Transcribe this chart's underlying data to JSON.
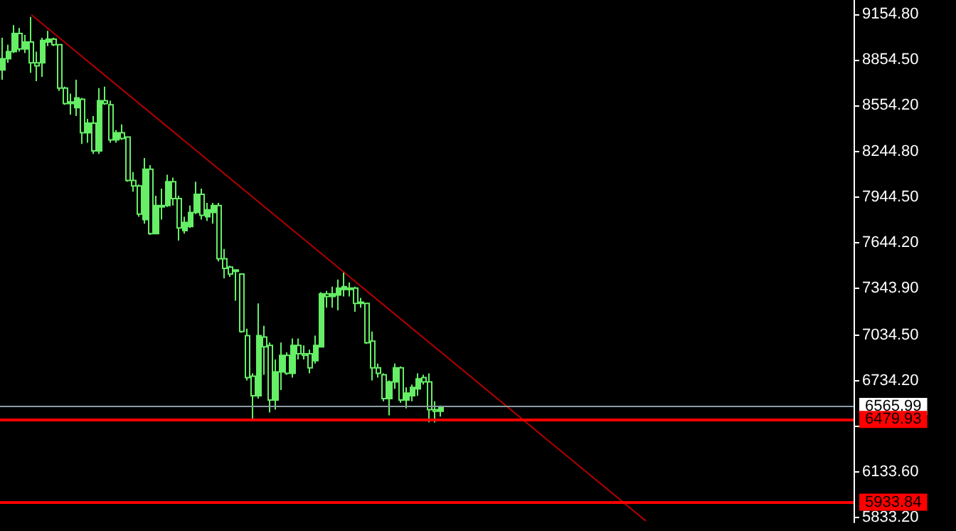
{
  "chart_data": {
    "type": "candlestick",
    "categories": [
      null,
      null,
      null,
      null,
      null,
      null,
      null,
      null,
      null,
      null,
      null,
      null,
      null,
      null,
      null,
      null,
      null,
      null,
      null,
      null,
      null,
      null,
      null,
      null,
      null,
      null,
      null,
      null,
      null,
      null,
      null,
      null,
      null,
      null,
      null,
      null,
      null,
      null,
      null,
      null,
      null,
      null,
      null,
      null,
      null,
      null,
      null,
      null,
      null,
      null,
      null,
      null,
      null,
      null,
      null,
      null,
      null,
      null,
      null,
      null,
      null,
      null,
      null,
      null,
      null,
      null,
      null,
      null,
      null,
      null,
      null,
      null,
      null,
      null,
      null,
      null,
      null,
      null,
      null,
      null,
      null,
      null,
      null,
      null,
      null,
      null,
      null,
      null,
      null,
      null,
      null,
      null,
      null,
      null,
      null,
      null,
      null,
      null,
      null,
      null,
      null,
      null,
      null,
      null,
      null,
      null,
      null,
      null,
      null,
      null,
      null,
      null,
      null,
      null,
      null,
      null,
      null,
      null,
      null,
      null,
      null,
      null,
      null,
      null,
      null,
      null,
      null,
      null,
      null,
      null,
      null,
      null,
      null,
      null,
      null,
      null,
      null,
      null,
      null,
      null,
      null,
      null,
      null,
      null,
      null,
      null,
      null,
      null,
      null,
      null
    ],
    "series": [
      {
        "color": "#66ee66",
        "ohlc": [
          [
            8786,
            8998,
            8721,
            8860
          ],
          [
            8860,
            8952,
            8832,
            8906
          ],
          [
            8906,
            9081,
            8897,
            9026
          ],
          [
            9026,
            9063,
            8906,
            8924
          ],
          [
            8924,
            9017,
            8897,
            8970
          ],
          [
            8970,
            9136,
            8767,
            8832
          ],
          [
            8832,
            8906,
            8712,
            8813
          ],
          [
            8832,
            8998,
            8740,
            8980
          ],
          [
            8970,
            9044,
            8943,
            8989
          ],
          [
            8989,
            8998,
            8943,
            8952
          ],
          [
            8952,
            8952,
            8647,
            8666
          ],
          [
            8666,
            8675,
            8555,
            8564
          ],
          [
            8564,
            8629,
            8491,
            8574
          ],
          [
            8537,
            8721,
            8481,
            8601
          ],
          [
            8592,
            8601,
            8297,
            8371
          ],
          [
            8371,
            8463,
            8306,
            8435
          ],
          [
            8435,
            8481,
            8232,
            8251
          ],
          [
            8251,
            8666,
            8232,
            8583
          ],
          [
            8583,
            8675,
            8555,
            8564
          ],
          [
            8555,
            8583,
            8306,
            8324
          ],
          [
            8324,
            8389,
            8306,
            8371
          ],
          [
            8371,
            8426,
            8324,
            8334
          ],
          [
            8343,
            8343,
            8048,
            8057
          ],
          [
            8057,
            8112,
            7983,
            8020
          ],
          [
            8020,
            8029,
            7817,
            7835
          ],
          [
            7798,
            8204,
            7771,
            8131
          ],
          [
            8131,
            8158,
            7697,
            7706
          ],
          [
            7706,
            7955,
            7706,
            7891
          ],
          [
            7891,
            8002,
            7798,
            7882
          ],
          [
            7891,
            8094,
            7882,
            8048
          ],
          [
            8048,
            8075,
            7891,
            7937
          ],
          [
            7937,
            7955,
            7660,
            7743
          ],
          [
            7725,
            7817,
            7706,
            7780
          ],
          [
            7752,
            7891,
            7743,
            7845
          ],
          [
            7845,
            8048,
            7835,
            7965
          ],
          [
            7965,
            8002,
            7798,
            7826
          ],
          [
            7817,
            7909,
            7789,
            7863
          ],
          [
            7845,
            7909,
            7771,
            7891
          ],
          [
            7891,
            7909,
            7522,
            7540
          ],
          [
            7540,
            7605,
            7411,
            7476
          ],
          [
            7485,
            7494,
            7420,
            7439
          ],
          [
            7466,
            7466,
            7263,
            7457
          ],
          [
            7439,
            7439,
            7051,
            7060
          ],
          [
            7033,
            7079,
            6737,
            6756
          ],
          [
            6765,
            6784,
            6479,
            6636
          ],
          [
            6636,
            7245,
            6617,
            7033
          ],
          [
            7023,
            7097,
            6774,
            6959
          ],
          [
            6968,
            6987,
            6525,
            6608
          ],
          [
            6608,
            6876,
            6544,
            6793
          ],
          [
            6793,
            6987,
            6673,
            6903
          ],
          [
            6903,
            6922,
            6774,
            6784
          ],
          [
            6784,
            7014,
            6756,
            6968
          ],
          [
            6968,
            7014,
            6876,
            6913
          ],
          [
            6913,
            6968,
            6876,
            6903
          ],
          [
            6913,
            6940,
            6784,
            6820
          ],
          [
            6867,
            7033,
            6848,
            6968
          ],
          [
            6959,
            7319,
            6959,
            7309
          ],
          [
            7309,
            7328,
            7217,
            7291
          ],
          [
            7291,
            7356,
            7217,
            7309
          ],
          [
            7300,
            7402,
            7199,
            7346
          ],
          [
            7337,
            7448,
            7291,
            7356
          ],
          [
            7346,
            7383,
            7291,
            7337
          ],
          [
            7346,
            7356,
            7190,
            7245
          ],
          [
            7245,
            7282,
            7217,
            7254
          ],
          [
            7245,
            7245,
            6977,
            6986
          ],
          [
            6996,
            7060,
            6737,
            6820
          ],
          [
            6820,
            6848,
            6756,
            6784
          ],
          [
            6774,
            6784,
            6599,
            6617
          ],
          [
            6617,
            6737,
            6507,
            6728
          ],
          [
            6728,
            6848,
            6682,
            6820
          ],
          [
            6820,
            6830,
            6590,
            6608
          ],
          [
            6608,
            6691,
            6553,
            6654
          ],
          [
            6636,
            6710,
            6599,
            6691
          ],
          [
            6682,
            6784,
            6636,
            6747
          ],
          [
            6756,
            6774,
            6710,
            6728
          ],
          [
            6728,
            6784,
            6461,
            6544
          ],
          [
            6544,
            6599,
            6460,
            6534
          ],
          [
            6534,
            6571,
            6498,
            6566
          ],
          null,
          null,
          null,
          null,
          null,
          null,
          null,
          null,
          null,
          null,
          null,
          null,
          null,
          null,
          null,
          null,
          null,
          null,
          null,
          null,
          null,
          null,
          null,
          null,
          null,
          null,
          null,
          null,
          null,
          null,
          null,
          null,
          null,
          null,
          null,
          null,
          null,
          null,
          null,
          null,
          null,
          null,
          null,
          null,
          null,
          null,
          null,
          null,
          null,
          null,
          null,
          null,
          null,
          null,
          null,
          null,
          null,
          null,
          null,
          null,
          null,
          null,
          null,
          null,
          null,
          null,
          null,
          null,
          null,
          null,
          null,
          null
        ]
      },
      {
        "type": "line",
        "color": "#b00000",
        "values": [
          null,
          null,
          null,
          null,
          null,
          9150,
          null,
          null,
          null,
          null,
          null,
          null,
          null,
          null,
          null,
          null,
          null,
          null,
          null,
          null,
          null,
          null,
          null,
          null,
          null,
          null,
          null,
          null,
          null,
          null,
          null,
          null,
          null,
          null,
          null,
          null,
          null,
          null,
          null,
          null,
          null,
          null,
          null,
          null,
          null,
          null,
          null,
          null,
          null,
          null,
          null,
          null,
          null,
          null,
          null,
          null,
          null,
          null,
          null,
          null,
          null,
          null,
          null,
          null,
          null,
          null,
          null,
          null,
          null,
          null,
          null,
          null,
          null,
          null,
          null,
          null,
          null,
          null,
          null,
          null,
          null,
          null,
          null,
          null,
          null,
          null,
          null,
          null,
          null,
          null,
          null,
          null,
          null,
          null,
          null,
          null,
          null,
          null,
          null,
          null,
          null,
          null,
          null,
          null,
          null,
          null,
          null,
          null,
          null,
          null,
          null,
          null,
          null,
          5810,
          null,
          null,
          null,
          null,
          null,
          null,
          null,
          null,
          null,
          null,
          null,
          null,
          null,
          null,
          null,
          null,
          null,
          null,
          null,
          null,
          null,
          null,
          null,
          null,
          null,
          null,
          null,
          null,
          null,
          null,
          null,
          null,
          null,
          null,
          null,
          null
        ]
      }
    ],
    "ylim": [
      5800,
      9247
    ],
    "yticks": [
      {
        "value": 5833.2,
        "label": "5833.20"
      },
      {
        "value": 6133.6,
        "label": "6133.60"
      },
      {
        "value": 6433.9,
        "label": null
      },
      {
        "value": 6734.2,
        "label": "6734.20"
      },
      {
        "value": 7034.5,
        "label": "7034.50"
      },
      {
        "value": 7343.9,
        "label": "7343.90"
      },
      {
        "value": 7644.2,
        "label": "7644.20"
      },
      {
        "value": 7944.5,
        "label": "7944.50"
      },
      {
        "value": 8244.8,
        "label": "8244.80"
      },
      {
        "value": 8554.2,
        "label": "8554.20"
      },
      {
        "value": 8854.5,
        "label": "8854.50"
      },
      {
        "value": 9154.8,
        "label": "9154.80"
      }
    ],
    "ref_lines": [
      {
        "axis": "y",
        "value": 6565.99,
        "label": "6565.99",
        "color": "#8c9ba5"
      },
      {
        "axis": "y",
        "value": 6479.93,
        "label": "6479.93",
        "color": "#ff0000"
      },
      {
        "axis": "y",
        "value": 5933.84,
        "label": "5933.84",
        "color": "#ff0000"
      }
    ],
    "tick_labels": "y",
    "grid": false
  }
}
